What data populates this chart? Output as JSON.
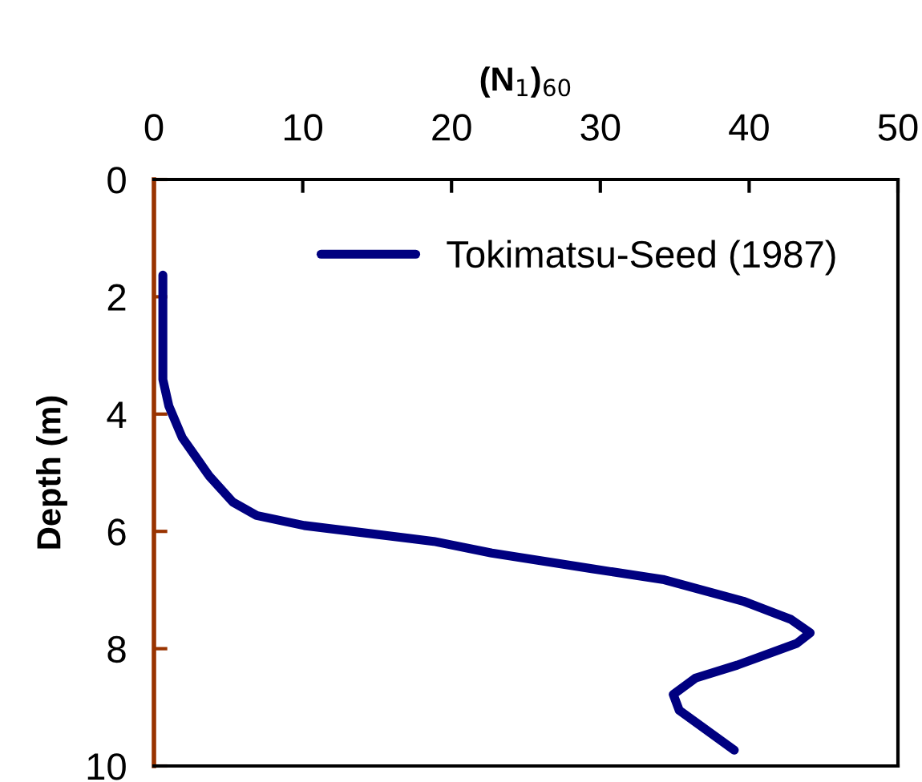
{
  "chart_data": {
    "type": "line",
    "xlabel": "(N$_{1}$)$_{60}$",
    "ylabel": "Depth (m)",
    "xlim": [
      0,
      50
    ],
    "xticks": [
      0,
      10,
      20,
      30,
      40,
      50
    ],
    "ylim": [
      10,
      0
    ],
    "yticks": [
      0,
      2,
      4,
      6,
      8,
      10
    ],
    "grid": false,
    "legend": "top right",
    "marker": "none",
    "line_style": "solid",
    "series": [
      {
        "name": "Tokimatsu-Seed (1987)",
        "color": "#000080",
        "x": [
          0.6,
          0.6,
          1.0,
          1.9,
          3.7,
          5.3,
          6.9,
          10.1,
          18.8,
          22.7,
          29.5,
          34.2,
          39.6,
          42.8,
          44.1,
          43.2,
          39.2,
          36.4,
          34.9,
          35.3,
          39.0
        ],
        "values": [
          1.63,
          3.41,
          3.86,
          4.4,
          5.05,
          5.5,
          5.73,
          5.9,
          6.17,
          6.37,
          6.64,
          6.82,
          7.19,
          7.5,
          7.73,
          7.91,
          8.28,
          8.5,
          8.78,
          9.05,
          9.73
        ]
      }
    ]
  }
}
